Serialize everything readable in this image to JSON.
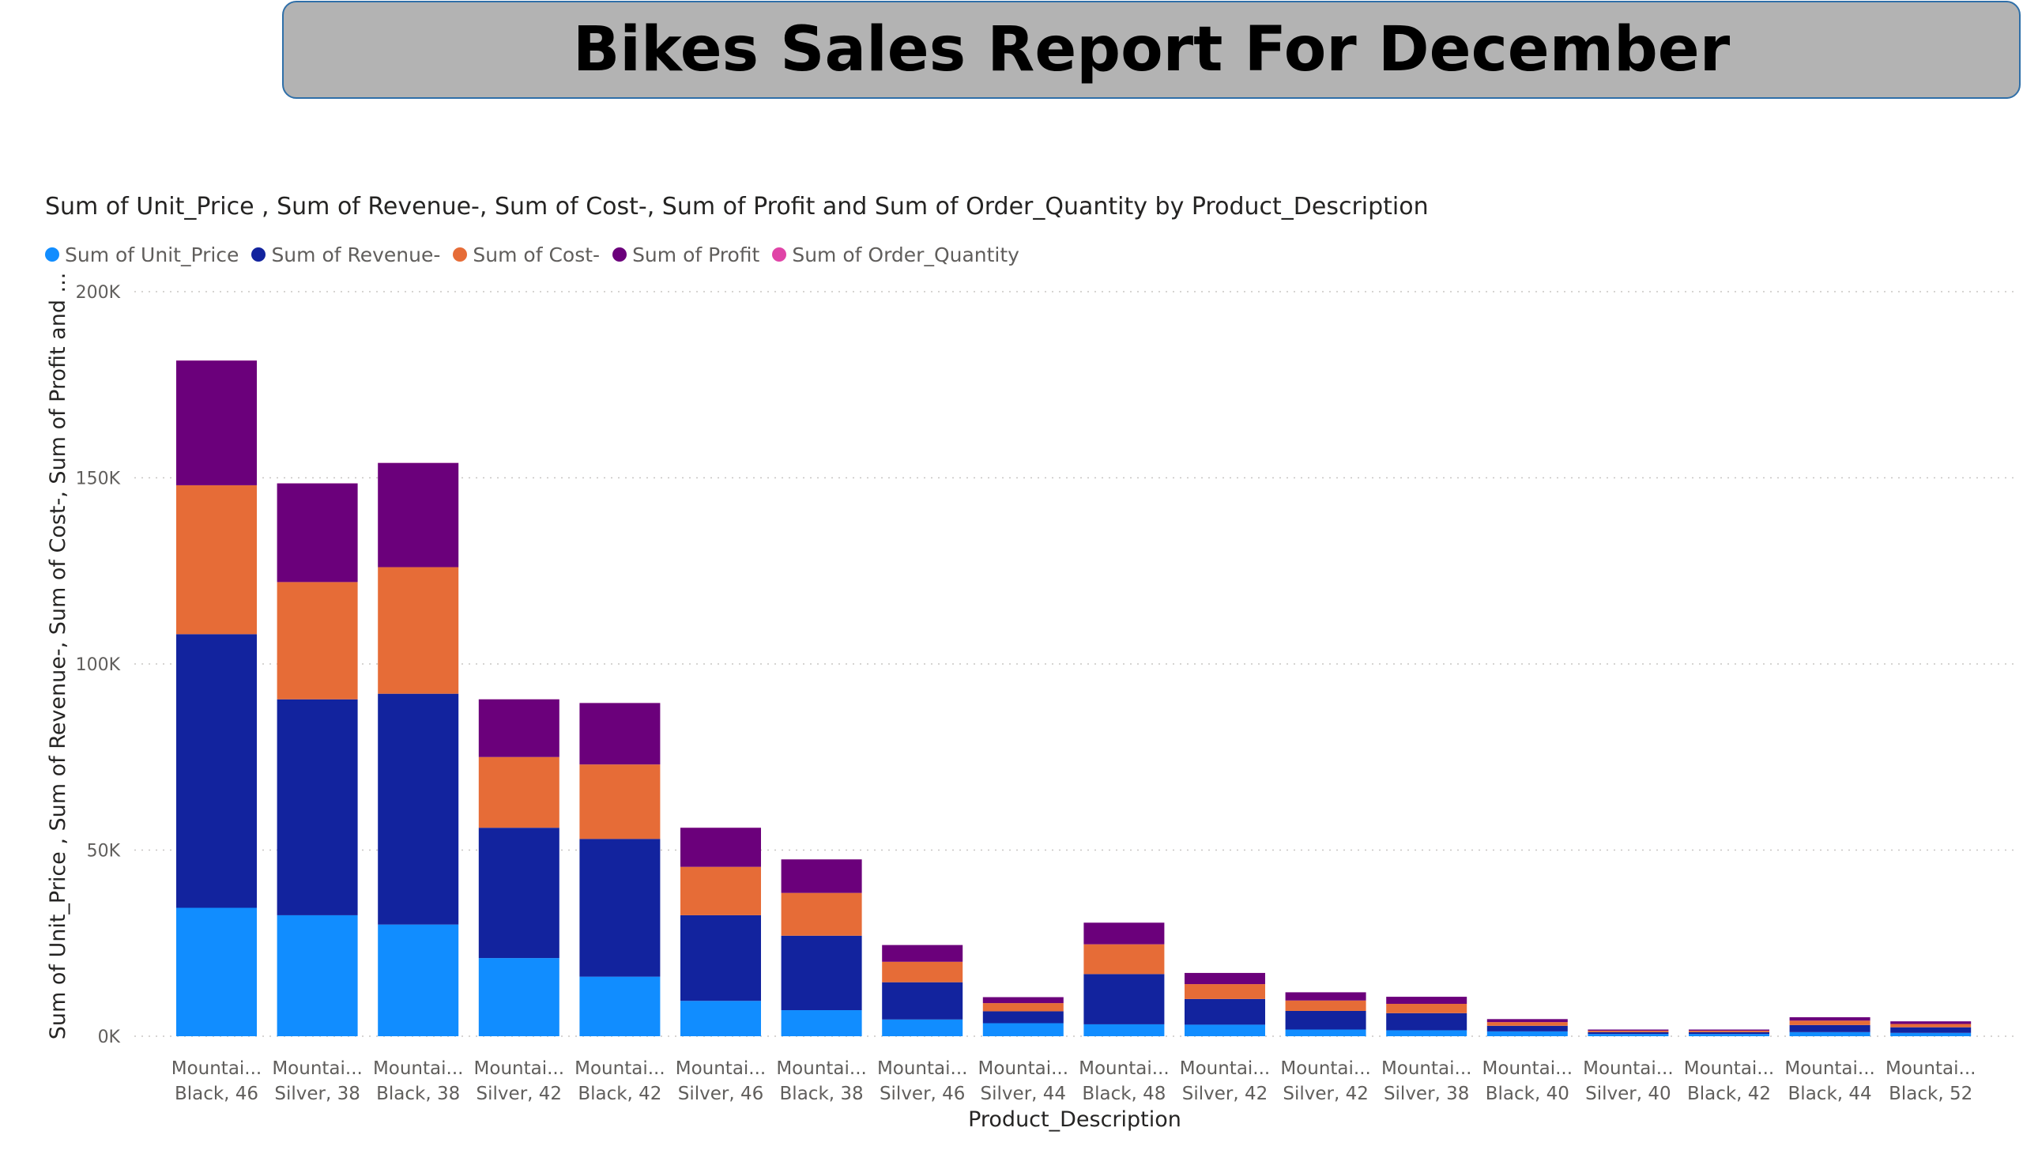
{
  "report": {
    "title": "Bikes Sales Report For December"
  },
  "chart_data": {
    "type": "bar",
    "stacked": true,
    "title": "Sum of Unit_Price , Sum of Revenue-, Sum of Cost-, Sum of Profit and Sum of Order_Quantity by Product_Description",
    "xlabel": "Product_Description",
    "ylabel": "Sum of Unit_Price , Sum of Revenue-, Sum of Cost-, Sum of Profit and ...",
    "ylim": [
      0,
      200000
    ],
    "yticks": [
      {
        "value": 0,
        "label": "0K"
      },
      {
        "value": 50000,
        "label": "50K"
      },
      {
        "value": 100000,
        "label": "100K"
      },
      {
        "value": 150000,
        "label": "150K"
      },
      {
        "value": 200000,
        "label": "200K"
      }
    ],
    "grid": true,
    "legend_position": "top-left",
    "categories": [
      {
        "line1": "Mountai...",
        "line2": "Black, 46"
      },
      {
        "line1": "Mountai...",
        "line2": "Silver, 38"
      },
      {
        "line1": "Mountai...",
        "line2": "Black, 38"
      },
      {
        "line1": "Mountai...",
        "line2": "Silver, 42"
      },
      {
        "line1": "Mountai...",
        "line2": "Black, 42"
      },
      {
        "line1": "Mountai...",
        "line2": "Silver, 46"
      },
      {
        "line1": "Mountai...",
        "line2": "Black, 38"
      },
      {
        "line1": "Mountai...",
        "line2": "Silver, 46"
      },
      {
        "line1": "Mountai...",
        "line2": "Silver, 44"
      },
      {
        "line1": "Mountai...",
        "line2": "Black, 48"
      },
      {
        "line1": "Mountai...",
        "line2": "Silver, 42"
      },
      {
        "line1": "Mountai...",
        "line2": "Silver, 42"
      },
      {
        "line1": "Mountai...",
        "line2": "Silver, 38"
      },
      {
        "line1": "Mountai...",
        "line2": "Black, 40"
      },
      {
        "line1": "Mountai...",
        "line2": "Silver, 40"
      },
      {
        "line1": "Mountai...",
        "line2": "Black, 42"
      },
      {
        "line1": "Mountai...",
        "line2": "Black, 44"
      },
      {
        "line1": "Mountai...",
        "line2": "Black, 52"
      }
    ],
    "series": [
      {
        "name": "Sum of  Unit_Price",
        "color": "#118dff",
        "values": [
          34500,
          32500,
          30000,
          21000,
          16000,
          9500,
          7000,
          4500,
          3500,
          3200,
          3100,
          1800,
          1600,
          1300,
          600,
          600,
          1100,
          900
        ]
      },
      {
        "name": "Sum of Revenue-",
        "color": "#12239e",
        "values": [
          73500,
          58000,
          62000,
          35000,
          37000,
          23000,
          20000,
          10000,
          3200,
          13500,
          6900,
          5000,
          4600,
          1500,
          500,
          500,
          1900,
          1500
        ]
      },
      {
        "name": "Sum of Cost-",
        "color": "#e66c37",
        "values": [
          40000,
          31500,
          34000,
          19000,
          20000,
          13000,
          11500,
          5500,
          2200,
          8000,
          4000,
          2800,
          2500,
          1000,
          400,
          400,
          1200,
          900
        ]
      },
      {
        "name": "Sum of  Profit",
        "color": "#6b007b",
        "values": [
          33500,
          26500,
          28000,
          15500,
          16500,
          10500,
          9000,
          4500,
          1600,
          5800,
          3000,
          2200,
          1900,
          800,
          300,
          300,
          900,
          700
        ]
      },
      {
        "name": "Sum of Order_Quantity",
        "color": "#e044a7",
        "values": [
          30,
          30,
          30,
          20,
          20,
          15,
          12,
          8,
          5,
          6,
          5,
          4,
          4,
          3,
          2,
          2,
          3,
          2
        ]
      }
    ]
  }
}
